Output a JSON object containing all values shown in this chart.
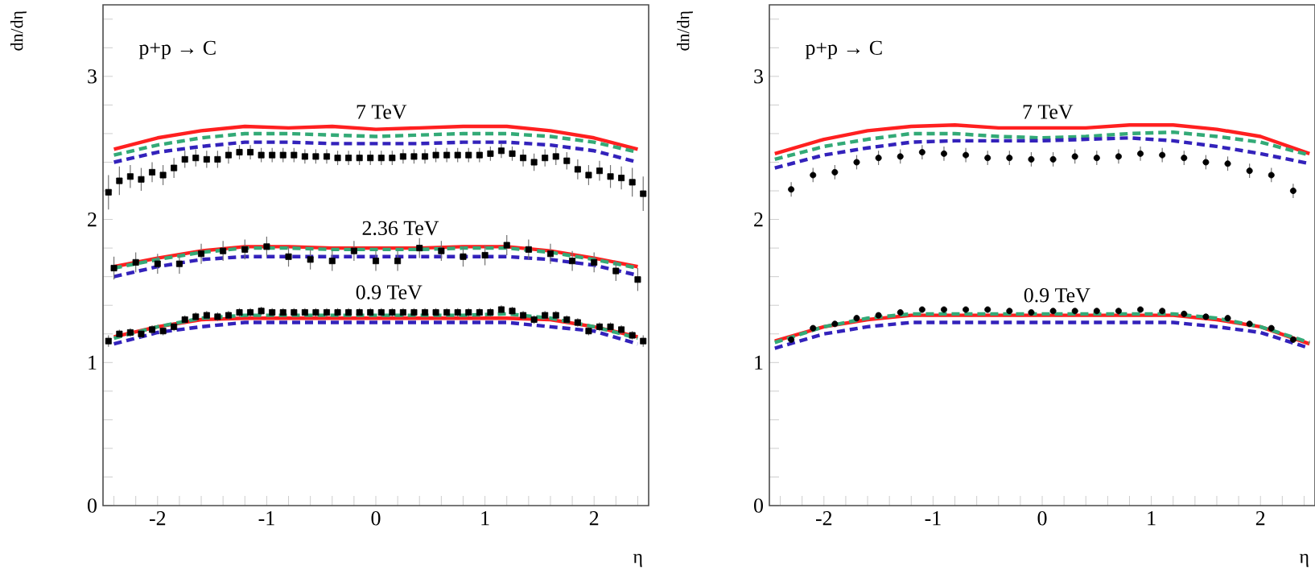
{
  "chart_data": [
    {
      "type": "line",
      "ylabel": "dn/dη",
      "xlabel": "η",
      "xlim": [
        -2.5,
        2.5
      ],
      "ylim": [
        0,
        3.5
      ],
      "xticks": [
        {
          "value": -2.4,
          "label": null
        },
        {
          "value": -2.2,
          "label": null
        },
        -2,
        {
          "value": -1.8,
          "label": null
        },
        {
          "value": -1.6,
          "label": null
        },
        {
          "value": -1.4,
          "label": null
        },
        {
          "value": -1.2,
          "label": null
        },
        -1,
        {
          "value": -0.8,
          "label": null
        },
        {
          "value": -0.6,
          "label": null
        },
        {
          "value": -0.4,
          "label": null
        },
        {
          "value": -0.2,
          "label": null
        },
        0,
        {
          "value": 0.2,
          "label": null
        },
        {
          "value": 0.4,
          "label": null
        },
        {
          "value": 0.6,
          "label": null
        },
        {
          "value": 0.8,
          "label": null
        },
        1,
        {
          "value": 1.2,
          "label": null
        },
        {
          "value": 1.4,
          "label": null
        },
        {
          "value": 1.6,
          "label": null
        },
        {
          "value": 1.8,
          "label": null
        },
        2,
        {
          "value": 2.2,
          "label": null
        },
        {
          "value": 2.4,
          "label": null
        }
      ],
      "yticks": [
        0,
        {
          "value": 0.2,
          "label": null
        },
        {
          "value": 0.4,
          "label": null
        },
        {
          "value": 0.6,
          "label": null
        },
        {
          "value": 0.8,
          "label": null
        },
        1,
        {
          "value": 1.2,
          "label": null
        },
        {
          "value": 1.4,
          "label": null
        },
        {
          "value": 1.6,
          "label": null
        },
        {
          "value": 1.8,
          "label": null
        },
        2,
        {
          "value": 2.2,
          "label": null
        },
        {
          "value": 2.4,
          "label": null
        },
        {
          "value": 2.6,
          "label": null
        },
        {
          "value": 2.8,
          "label": null
        },
        3,
        {
          "value": 3.2,
          "label": null
        },
        {
          "value": 3.4,
          "label": null
        }
      ],
      "annotations": [
        "p+p → C",
        "7 TeV",
        "2.36 TeV",
        "0.9 TeV"
      ],
      "series": [
        {
          "type": "line",
          "color": "#ff2020",
          "line_style": "solid",
          "x": [
            -2.4,
            -2.0,
            -1.6,
            -1.2,
            -0.8,
            -0.4,
            0,
            0.4,
            0.8,
            1.2,
            1.6,
            2.0,
            2.4
          ],
          "values": [
            2.49,
            2.57,
            2.62,
            2.65,
            2.64,
            2.65,
            2.63,
            2.64,
            2.65,
            2.65,
            2.62,
            2.57,
            2.49
          ]
        },
        {
          "type": "line",
          "color": "#33aa77",
          "line_style": "dashed",
          "x": [
            -2.4,
            -2.0,
            -1.6,
            -1.2,
            -0.8,
            -0.4,
            0,
            0.4,
            0.8,
            1.2,
            1.6,
            2.0,
            2.4
          ],
          "values": [
            2.45,
            2.52,
            2.57,
            2.6,
            2.6,
            2.59,
            2.58,
            2.59,
            2.6,
            2.6,
            2.58,
            2.54,
            2.47
          ]
        },
        {
          "type": "line",
          "color": "#3322bb",
          "line_style": "dashed",
          "x": [
            -2.4,
            -2.0,
            -1.6,
            -1.2,
            -0.8,
            -0.4,
            0,
            0.4,
            0.8,
            1.2,
            1.6,
            2.0,
            2.4
          ],
          "values": [
            2.4,
            2.47,
            2.51,
            2.54,
            2.54,
            2.53,
            2.53,
            2.53,
            2.54,
            2.54,
            2.52,
            2.48,
            2.4
          ]
        },
        {
          "type": "scatter",
          "color": "#000000",
          "marker": "square",
          "x": [
            -2.45,
            -2.35,
            -2.25,
            -2.15,
            -2.05,
            -1.95,
            -1.85,
            -1.75,
            -1.65,
            -1.55,
            -1.45,
            -1.35,
            -1.25,
            -1.15,
            -1.05,
            -0.95,
            -0.85,
            -0.75,
            -0.65,
            -0.55,
            -0.45,
            -0.35,
            -0.25,
            -0.15,
            -0.05,
            0.05,
            0.15,
            0.25,
            0.35,
            0.45,
            0.55,
            0.65,
            0.75,
            0.85,
            0.95,
            1.05,
            1.15,
            1.25,
            1.35,
            1.45,
            1.55,
            1.65,
            1.75,
            1.85,
            1.95,
            2.05,
            2.15,
            2.25,
            2.35,
            2.45
          ],
          "values": [
            2.19,
            2.27,
            2.3,
            2.28,
            2.33,
            2.31,
            2.36,
            2.42,
            2.43,
            2.42,
            2.42,
            2.45,
            2.47,
            2.47,
            2.45,
            2.45,
            2.45,
            2.45,
            2.44,
            2.44,
            2.44,
            2.43,
            2.43,
            2.43,
            2.43,
            2.43,
            2.43,
            2.44,
            2.44,
            2.44,
            2.45,
            2.45,
            2.45,
            2.45,
            2.45,
            2.46,
            2.48,
            2.46,
            2.43,
            2.4,
            2.43,
            2.44,
            2.41,
            2.35,
            2.31,
            2.34,
            2.3,
            2.29,
            2.26,
            2.18
          ],
          "errors": [
            0.12,
            0.1,
            0.08,
            0.08,
            0.07,
            0.07,
            0.07,
            0.06,
            0.06,
            0.06,
            0.06,
            0.06,
            0.05,
            0.05,
            0.05,
            0.05,
            0.05,
            0.05,
            0.05,
            0.05,
            0.05,
            0.05,
            0.05,
            0.05,
            0.05,
            0.05,
            0.05,
            0.05,
            0.05,
            0.05,
            0.05,
            0.05,
            0.05,
            0.05,
            0.05,
            0.05,
            0.05,
            0.05,
            0.06,
            0.06,
            0.06,
            0.06,
            0.06,
            0.07,
            0.07,
            0.07,
            0.08,
            0.08,
            0.1,
            0.12
          ]
        },
        {
          "type": "line",
          "color": "#ff2020",
          "line_style": "solid",
          "x": [
            -2.4,
            -2.0,
            -1.6,
            -1.2,
            -0.8,
            -0.4,
            0,
            0.4,
            0.8,
            1.2,
            1.6,
            2.0,
            2.4
          ],
          "values": [
            1.67,
            1.73,
            1.78,
            1.81,
            1.81,
            1.8,
            1.8,
            1.8,
            1.81,
            1.81,
            1.78,
            1.73,
            1.67
          ]
        },
        {
          "type": "line",
          "color": "#33aa77",
          "line_style": "dashed",
          "x": [
            -2.4,
            -2.0,
            -1.6,
            -1.2,
            -0.8,
            -0.4,
            0,
            0.4,
            0.8,
            1.2,
            1.6,
            2.0,
            2.4
          ],
          "values": [
            1.66,
            1.72,
            1.77,
            1.8,
            1.8,
            1.79,
            1.79,
            1.79,
            1.8,
            1.8,
            1.77,
            1.72,
            1.66
          ]
        },
        {
          "type": "line",
          "color": "#3322bb",
          "line_style": "dashed",
          "x": [
            -2.4,
            -2.0,
            -1.6,
            -1.2,
            -0.8,
            -0.4,
            0,
            0.4,
            0.8,
            1.2,
            1.6,
            2.0,
            2.4
          ],
          "values": [
            1.6,
            1.67,
            1.72,
            1.74,
            1.74,
            1.74,
            1.74,
            1.74,
            1.74,
            1.74,
            1.72,
            1.68,
            1.61
          ]
        },
        {
          "type": "scatter",
          "color": "#000000",
          "marker": "square",
          "x": [
            -2.4,
            -2.2,
            -2.0,
            -1.8,
            -1.6,
            -1.4,
            -1.2,
            -1.0,
            -0.8,
            -0.6,
            -0.4,
            -0.2,
            0,
            0.2,
            0.4,
            0.6,
            0.8,
            1.0,
            1.2,
            1.4,
            1.6,
            1.8,
            2.0,
            2.2,
            2.4
          ],
          "values": [
            1.66,
            1.7,
            1.69,
            1.69,
            1.76,
            1.78,
            1.79,
            1.81,
            1.74,
            1.72,
            1.71,
            1.78,
            1.71,
            1.71,
            1.8,
            1.78,
            1.74,
            1.75,
            1.82,
            1.79,
            1.76,
            1.71,
            1.7,
            1.64,
            1.58
          ],
          "errors": [
            0.08,
            0.07,
            0.07,
            0.07,
            0.07,
            0.07,
            0.07,
            0.07,
            0.07,
            0.07,
            0.07,
            0.07,
            0.07,
            0.07,
            0.07,
            0.07,
            0.07,
            0.07,
            0.07,
            0.07,
            0.07,
            0.07,
            0.07,
            0.07,
            0.08
          ]
        },
        {
          "type": "line",
          "color": "#ff2020",
          "line_style": "solid",
          "x": [
            -2.4,
            -2.0,
            -1.6,
            -1.2,
            -0.8,
            -0.4,
            0,
            0.4,
            0.8,
            1.2,
            1.6,
            2.0,
            2.4
          ],
          "values": [
            1.18,
            1.25,
            1.3,
            1.31,
            1.31,
            1.31,
            1.31,
            1.31,
            1.31,
            1.31,
            1.3,
            1.25,
            1.18
          ]
        },
        {
          "type": "line",
          "color": "#33aa77",
          "line_style": "dashed",
          "x": [
            -2.4,
            -2.0,
            -1.6,
            -1.2,
            -0.8,
            -0.4,
            0,
            0.4,
            0.8,
            1.2,
            1.6,
            2.0,
            2.4
          ],
          "values": [
            1.17,
            1.25,
            1.31,
            1.33,
            1.33,
            1.33,
            1.33,
            1.33,
            1.33,
            1.34,
            1.31,
            1.25,
            1.17
          ]
        },
        {
          "type": "line",
          "color": "#3322bb",
          "line_style": "dashed",
          "x": [
            -2.4,
            -2.0,
            -1.6,
            -1.2,
            -0.8,
            -0.4,
            0,
            0.4,
            0.8,
            1.2,
            1.6,
            2.0,
            2.4
          ],
          "values": [
            1.13,
            1.21,
            1.25,
            1.28,
            1.28,
            1.28,
            1.28,
            1.28,
            1.28,
            1.28,
            1.25,
            1.22,
            1.13
          ]
        },
        {
          "type": "scatter",
          "color": "#000000",
          "marker": "square",
          "x": [
            -2.45,
            -2.35,
            -2.25,
            -2.15,
            -2.05,
            -1.95,
            -1.85,
            -1.75,
            -1.65,
            -1.55,
            -1.45,
            -1.35,
            -1.25,
            -1.15,
            -1.05,
            -0.95,
            -0.85,
            -0.75,
            -0.65,
            -0.55,
            -0.45,
            -0.35,
            -0.25,
            -0.15,
            -0.05,
            0.05,
            0.15,
            0.25,
            0.35,
            0.45,
            0.55,
            0.65,
            0.75,
            0.85,
            0.95,
            1.05,
            1.15,
            1.25,
            1.35,
            1.45,
            1.55,
            1.65,
            1.75,
            1.85,
            1.95,
            2.05,
            2.15,
            2.25,
            2.35,
            2.45
          ],
          "values": [
            1.15,
            1.2,
            1.21,
            1.2,
            1.23,
            1.22,
            1.25,
            1.3,
            1.32,
            1.33,
            1.32,
            1.33,
            1.35,
            1.35,
            1.36,
            1.35,
            1.35,
            1.35,
            1.35,
            1.35,
            1.35,
            1.35,
            1.35,
            1.35,
            1.35,
            1.35,
            1.35,
            1.35,
            1.35,
            1.35,
            1.35,
            1.35,
            1.35,
            1.35,
            1.35,
            1.35,
            1.37,
            1.36,
            1.33,
            1.3,
            1.33,
            1.33,
            1.3,
            1.28,
            1.22,
            1.25,
            1.25,
            1.23,
            1.19,
            1.15
          ],
          "errors": [
            0.04,
            0.03,
            0.03,
            0.03,
            0.03,
            0.03,
            0.03,
            0.03,
            0.03,
            0.03,
            0.03,
            0.03,
            0.03,
            0.03,
            0.03,
            0.03,
            0.03,
            0.03,
            0.03,
            0.03,
            0.03,
            0.03,
            0.03,
            0.03,
            0.03,
            0.03,
            0.03,
            0.03,
            0.03,
            0.03,
            0.03,
            0.03,
            0.03,
            0.03,
            0.03,
            0.03,
            0.03,
            0.03,
            0.03,
            0.03,
            0.03,
            0.03,
            0.03,
            0.03,
            0.03,
            0.03,
            0.03,
            0.03,
            0.03,
            0.04
          ]
        }
      ]
    },
    {
      "type": "line",
      "ylabel": "dn/dη",
      "xlabel": "η",
      "xlim": [
        -2.5,
        2.5
      ],
      "ylim": [
        0,
        3.5
      ],
      "xticks": [
        {
          "value": -2.4,
          "label": null
        },
        {
          "value": -2.2,
          "label": null
        },
        -2,
        {
          "value": -1.8,
          "label": null
        },
        {
          "value": -1.6,
          "label": null
        },
        {
          "value": -1.4,
          "label": null
        },
        {
          "value": -1.2,
          "label": null
        },
        -1,
        {
          "value": -0.8,
          "label": null
        },
        {
          "value": -0.6,
          "label": null
        },
        {
          "value": -0.4,
          "label": null
        },
        {
          "value": -0.2,
          "label": null
        },
        0,
        {
          "value": 0.2,
          "label": null
        },
        {
          "value": 0.4,
          "label": null
        },
        {
          "value": 0.6,
          "label": null
        },
        {
          "value": 0.8,
          "label": null
        },
        1,
        {
          "value": 1.2,
          "label": null
        },
        {
          "value": 1.4,
          "label": null
        },
        {
          "value": 1.6,
          "label": null
        },
        {
          "value": 1.8,
          "label": null
        },
        2,
        {
          "value": 2.2,
          "label": null
        },
        {
          "value": 2.4,
          "label": null
        }
      ],
      "yticks": [
        0,
        {
          "value": 0.2,
          "label": null
        },
        {
          "value": 0.4,
          "label": null
        },
        {
          "value": 0.6,
          "label": null
        },
        {
          "value": 0.8,
          "label": null
        },
        1,
        {
          "value": 1.2,
          "label": null
        },
        {
          "value": 1.4,
          "label": null
        },
        {
          "value": 1.6,
          "label": null
        },
        {
          "value": 1.8,
          "label": null
        },
        2,
        {
          "value": 2.2,
          "label": null
        },
        {
          "value": 2.4,
          "label": null
        },
        {
          "value": 2.6,
          "label": null
        },
        {
          "value": 2.8,
          "label": null
        },
        3,
        {
          "value": 3.2,
          "label": null
        },
        {
          "value": 3.4,
          "label": null
        }
      ],
      "annotations": [
        "p+p → C",
        "7 TeV",
        "0.9 TeV"
      ],
      "series": [
        {
          "type": "line",
          "color": "#ff2020",
          "line_style": "solid",
          "x": [
            -2.45,
            -2.0,
            -1.6,
            -1.2,
            -0.8,
            -0.4,
            0,
            0.4,
            0.8,
            1.2,
            1.6,
            2.0,
            2.45
          ],
          "values": [
            2.46,
            2.56,
            2.62,
            2.65,
            2.66,
            2.64,
            2.64,
            2.64,
            2.66,
            2.66,
            2.63,
            2.58,
            2.46
          ]
        },
        {
          "type": "line",
          "color": "#33aa77",
          "line_style": "dashed",
          "x": [
            -2.45,
            -2.0,
            -1.6,
            -1.2,
            -0.8,
            -0.4,
            0,
            0.4,
            0.8,
            1.2,
            1.6,
            2.0,
            2.45
          ],
          "values": [
            2.42,
            2.51,
            2.56,
            2.6,
            2.6,
            2.58,
            2.57,
            2.58,
            2.6,
            2.61,
            2.58,
            2.54,
            2.45
          ]
        },
        {
          "type": "line",
          "color": "#3322bb",
          "line_style": "dashed",
          "x": [
            -2.45,
            -2.0,
            -1.6,
            -1.2,
            -0.8,
            -0.4,
            0,
            0.4,
            0.8,
            1.2,
            1.6,
            2.0,
            2.45
          ],
          "values": [
            2.36,
            2.45,
            2.5,
            2.54,
            2.55,
            2.55,
            2.55,
            2.56,
            2.57,
            2.55,
            2.51,
            2.46,
            2.39
          ]
        },
        {
          "type": "scatter",
          "color": "#000000",
          "marker": "circle",
          "x": [
            -2.3,
            -2.1,
            -1.9,
            -1.7,
            -1.5,
            -1.3,
            -1.1,
            -0.9,
            -0.7,
            -0.5,
            -0.3,
            -0.1,
            0.1,
            0.3,
            0.5,
            0.7,
            0.9,
            1.1,
            1.3,
            1.5,
            1.7,
            1.9,
            2.1,
            2.3
          ],
          "values": [
            2.21,
            2.31,
            2.33,
            2.4,
            2.43,
            2.44,
            2.47,
            2.46,
            2.45,
            2.43,
            2.43,
            2.42,
            2.42,
            2.44,
            2.43,
            2.44,
            2.46,
            2.45,
            2.43,
            2.4,
            2.39,
            2.34,
            2.31,
            2.2
          ],
          "errors": [
            0.05,
            0.05,
            0.05,
            0.05,
            0.05,
            0.05,
            0.05,
            0.05,
            0.05,
            0.05,
            0.05,
            0.05,
            0.05,
            0.05,
            0.05,
            0.05,
            0.05,
            0.05,
            0.05,
            0.05,
            0.05,
            0.05,
            0.05,
            0.05
          ]
        },
        {
          "type": "line",
          "color": "#ff2020",
          "line_style": "solid",
          "x": [
            -2.45,
            -2.0,
            -1.6,
            -1.2,
            -0.8,
            -0.4,
            0,
            0.4,
            0.8,
            1.2,
            1.6,
            2.0,
            2.45
          ],
          "values": [
            1.15,
            1.25,
            1.3,
            1.33,
            1.33,
            1.33,
            1.33,
            1.33,
            1.33,
            1.33,
            1.3,
            1.25,
            1.13
          ]
        },
        {
          "type": "line",
          "color": "#33aa77",
          "line_style": "dashed",
          "x": [
            -2.45,
            -2.0,
            -1.6,
            -1.2,
            -0.8,
            -0.4,
            0,
            0.4,
            0.8,
            1.2,
            1.6,
            2.0,
            2.45
          ],
          "values": [
            1.14,
            1.25,
            1.31,
            1.34,
            1.34,
            1.34,
            1.34,
            1.34,
            1.34,
            1.34,
            1.31,
            1.25,
            1.14
          ]
        },
        {
          "type": "line",
          "color": "#3322bb",
          "line_style": "dashed",
          "x": [
            -2.45,
            -2.0,
            -1.6,
            -1.2,
            -0.8,
            -0.4,
            0,
            0.4,
            0.8,
            1.2,
            1.6,
            2.0,
            2.45
          ],
          "values": [
            1.1,
            1.2,
            1.25,
            1.28,
            1.28,
            1.28,
            1.28,
            1.28,
            1.28,
            1.28,
            1.25,
            1.21,
            1.1
          ]
        },
        {
          "type": "scatter",
          "color": "#000000",
          "marker": "circle",
          "x": [
            -2.3,
            -2.1,
            -1.9,
            -1.7,
            -1.5,
            -1.3,
            -1.1,
            -0.9,
            -0.7,
            -0.5,
            -0.3,
            -0.1,
            0.1,
            0.3,
            0.5,
            0.7,
            0.9,
            1.1,
            1.3,
            1.5,
            1.7,
            1.9,
            2.1,
            2.3
          ],
          "values": [
            1.16,
            1.24,
            1.27,
            1.31,
            1.33,
            1.35,
            1.37,
            1.37,
            1.37,
            1.37,
            1.36,
            1.35,
            1.36,
            1.36,
            1.36,
            1.36,
            1.37,
            1.36,
            1.34,
            1.32,
            1.31,
            1.27,
            1.24,
            1.16
          ],
          "errors": [
            0.02,
            0.02,
            0.02,
            0.02,
            0.02,
            0.02,
            0.02,
            0.02,
            0.02,
            0.02,
            0.02,
            0.02,
            0.02,
            0.02,
            0.02,
            0.02,
            0.02,
            0.02,
            0.02,
            0.02,
            0.02,
            0.02,
            0.02,
            0.02
          ]
        }
      ]
    }
  ]
}
